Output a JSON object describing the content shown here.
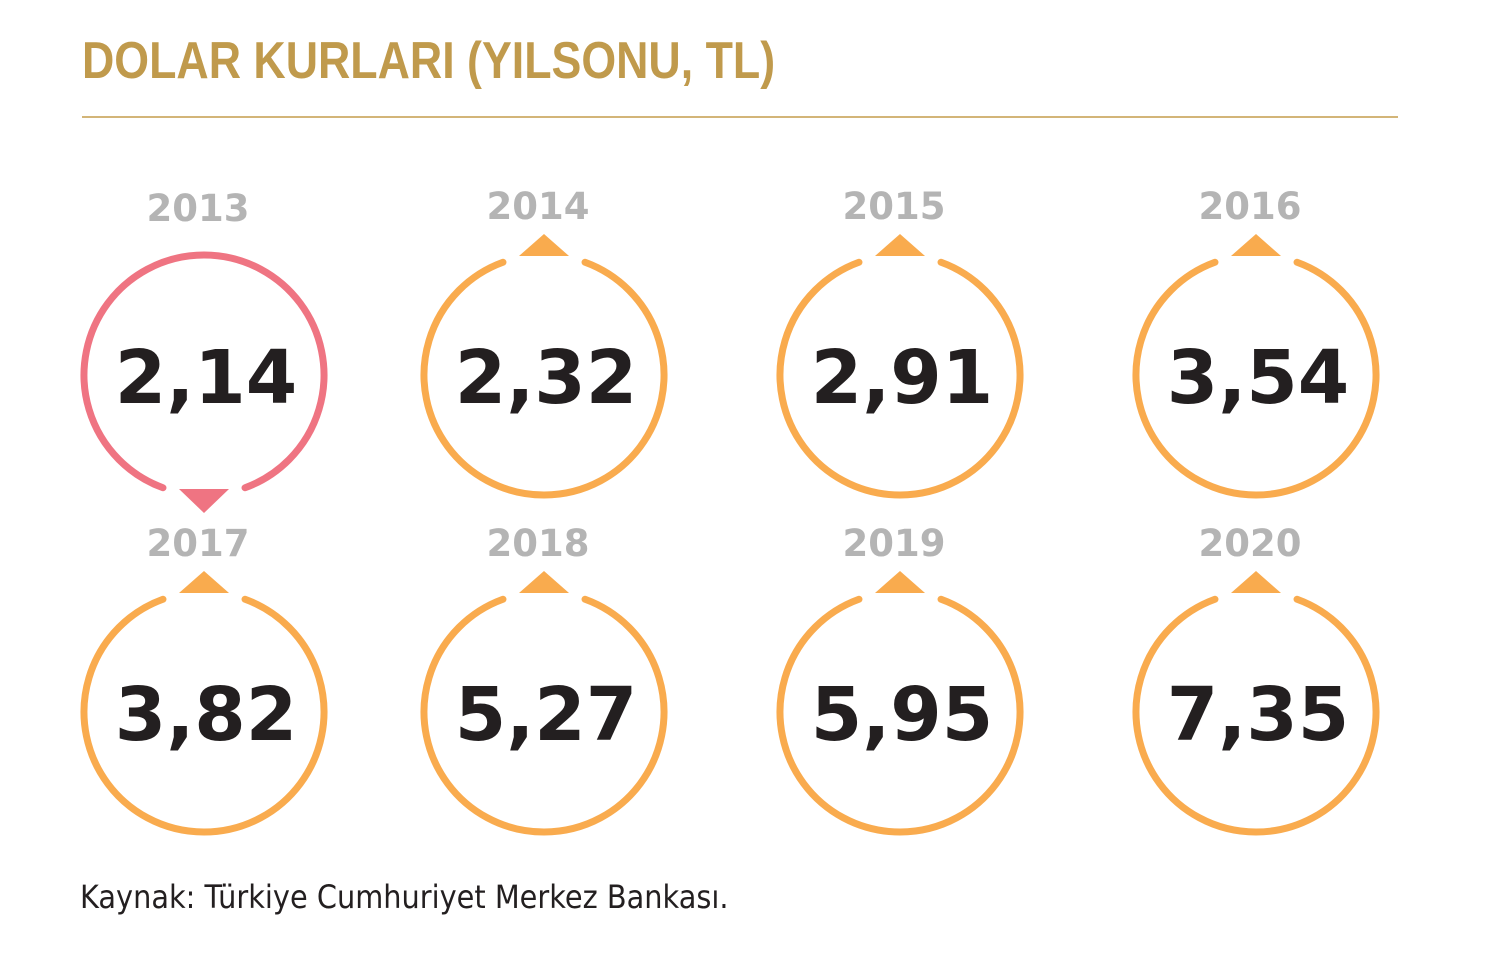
{
  "title": "DOLAR KURLARI (YILSONU, TL)",
  "source": "Kaynak: Türkiye Cumhuriyet Merkez Bankası.",
  "colors": {
    "title": "#c09a4c",
    "rule": "#d3b578",
    "increase": "#f9ab4e",
    "decrease": "#ef7482",
    "year": "#b4b4b4",
    "value": "#231f20"
  },
  "chart_data": {
    "type": "table",
    "title": "DOLAR KURLARI (YILSONU, TL)",
    "categories": [
      "2013",
      "2014",
      "2015",
      "2016",
      "2017",
      "2018",
      "2019",
      "2020"
    ],
    "values": [
      2.14,
      2.32,
      2.91,
      3.54,
      3.82,
      5.27,
      5.95,
      7.35
    ],
    "value_labels": [
      "2,14",
      "2,32",
      "2,91",
      "3,54",
      "3,82",
      "5,27",
      "5,95",
      "7,35"
    ],
    "direction": [
      "down",
      "up",
      "up",
      "up",
      "up",
      "up",
      "up",
      "up"
    ],
    "unit": "TL"
  }
}
